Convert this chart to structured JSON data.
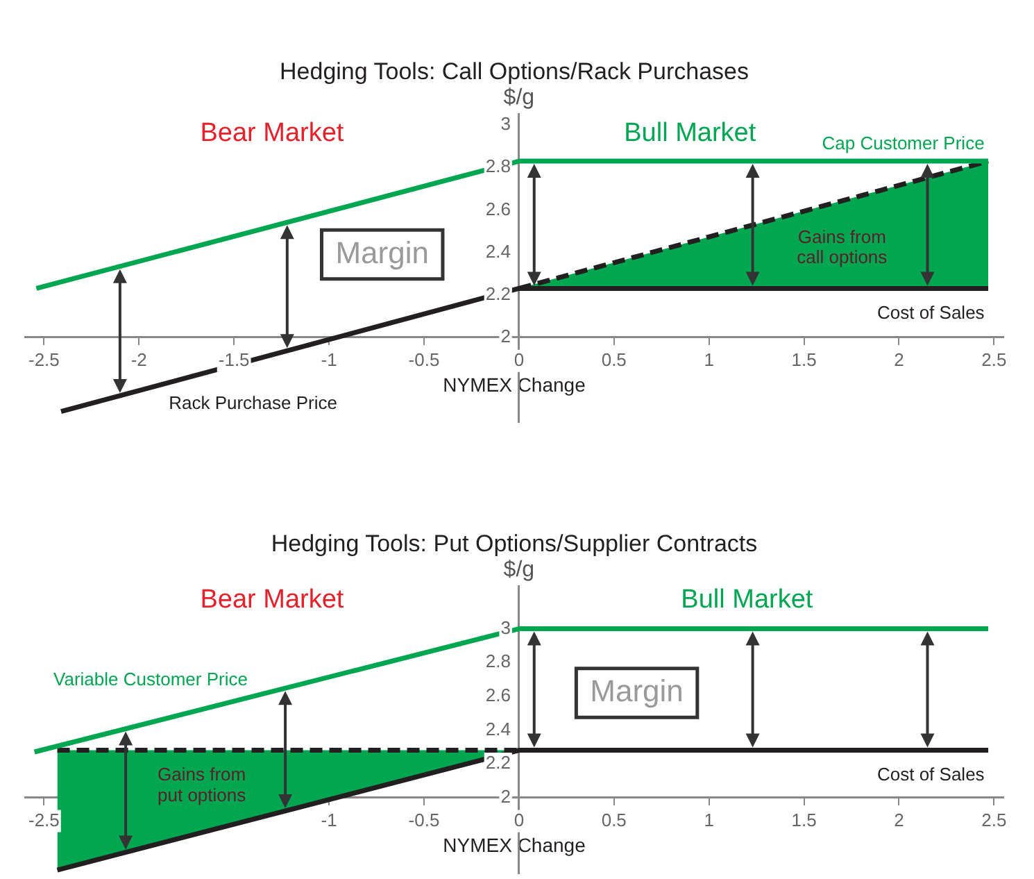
{
  "chart_data": [
    {
      "type": "line",
      "title": "Hedging Tools: Call Options/Rack Purchases",
      "xlabel": "NYMEX Change",
      "ylabel": "$/g",
      "xlim": [
        -2.6,
        2.55
      ],
      "xticks": [
        -2.5,
        -2,
        -1.5,
        -1,
        -0.5,
        0,
        0.5,
        1,
        1.5,
        2,
        2.5
      ],
      "ylim": [
        1.6,
        3.05
      ],
      "yticks": [
        2,
        2.2,
        2.4,
        2.6,
        2.8,
        3
      ],
      "grid": false,
      "legend": false,
      "marker": "none",
      "series": [
        {
          "name": "Cap Customer Price",
          "color": "#00a650",
          "x": [
            -2.54,
            0,
            2.47
          ],
          "values": [
            2.23,
            2.83,
            2.83
          ]
        },
        {
          "name": "Cost of Sales",
          "color": "#231f20",
          "x": [
            -2.41,
            0,
            2.47
          ],
          "values": [
            1.65,
            2.23,
            2.23
          ]
        },
        {
          "type": "area",
          "color": "#00a650",
          "line_style": "dashed",
          "x": [
            0,
            2.47
          ],
          "values": [
            2.23,
            2.83
          ]
        }
      ],
      "annotations": [
        "Bear Market",
        "Bull Market",
        "Margin",
        "Gains from call options",
        {
          "text": "Rack Purchase Price",
          "x": -1.4,
          "y": 1.89
        }
      ]
    },
    {
      "type": "line",
      "title": "Hedging Tools: Put Options/Supplier Contracts",
      "xlabel": "NYMEX Change",
      "ylabel": "$/g",
      "xlim": [
        -2.6,
        2.55
      ],
      "xticks": [
        -2.5,
        -1,
        -0.5,
        0,
        0.5,
        1,
        1.5,
        2,
        2.5
      ],
      "ylim": [
        1.55,
        3.25
      ],
      "yticks": [
        2,
        2.2,
        2.4,
        2.6,
        2.8,
        3
      ],
      "grid": false,
      "legend": false,
      "marker": "none",
      "series": [
        {
          "name": "Variable Customer Price",
          "color": "#00a650",
          "x": [
            -2.55,
            0,
            2.47
          ],
          "values": [
            2.27,
            3,
            3
          ]
        },
        {
          "name": "Cost of Sales",
          "color": "#231f20",
          "x": [
            -2.43,
            0,
            2.47
          ],
          "values": [
            1.57,
            2.28,
            2.28
          ]
        },
        {
          "type": "area",
          "color": "#00a650",
          "line_style": "dashed",
          "x": [
            -2.43,
            0
          ],
          "values": [
            2.28,
            2.28
          ]
        }
      ],
      "annotations": [
        "Bear Market",
        "Bull Market",
        "Margin",
        "Gains from put options"
      ]
    }
  ]
}
